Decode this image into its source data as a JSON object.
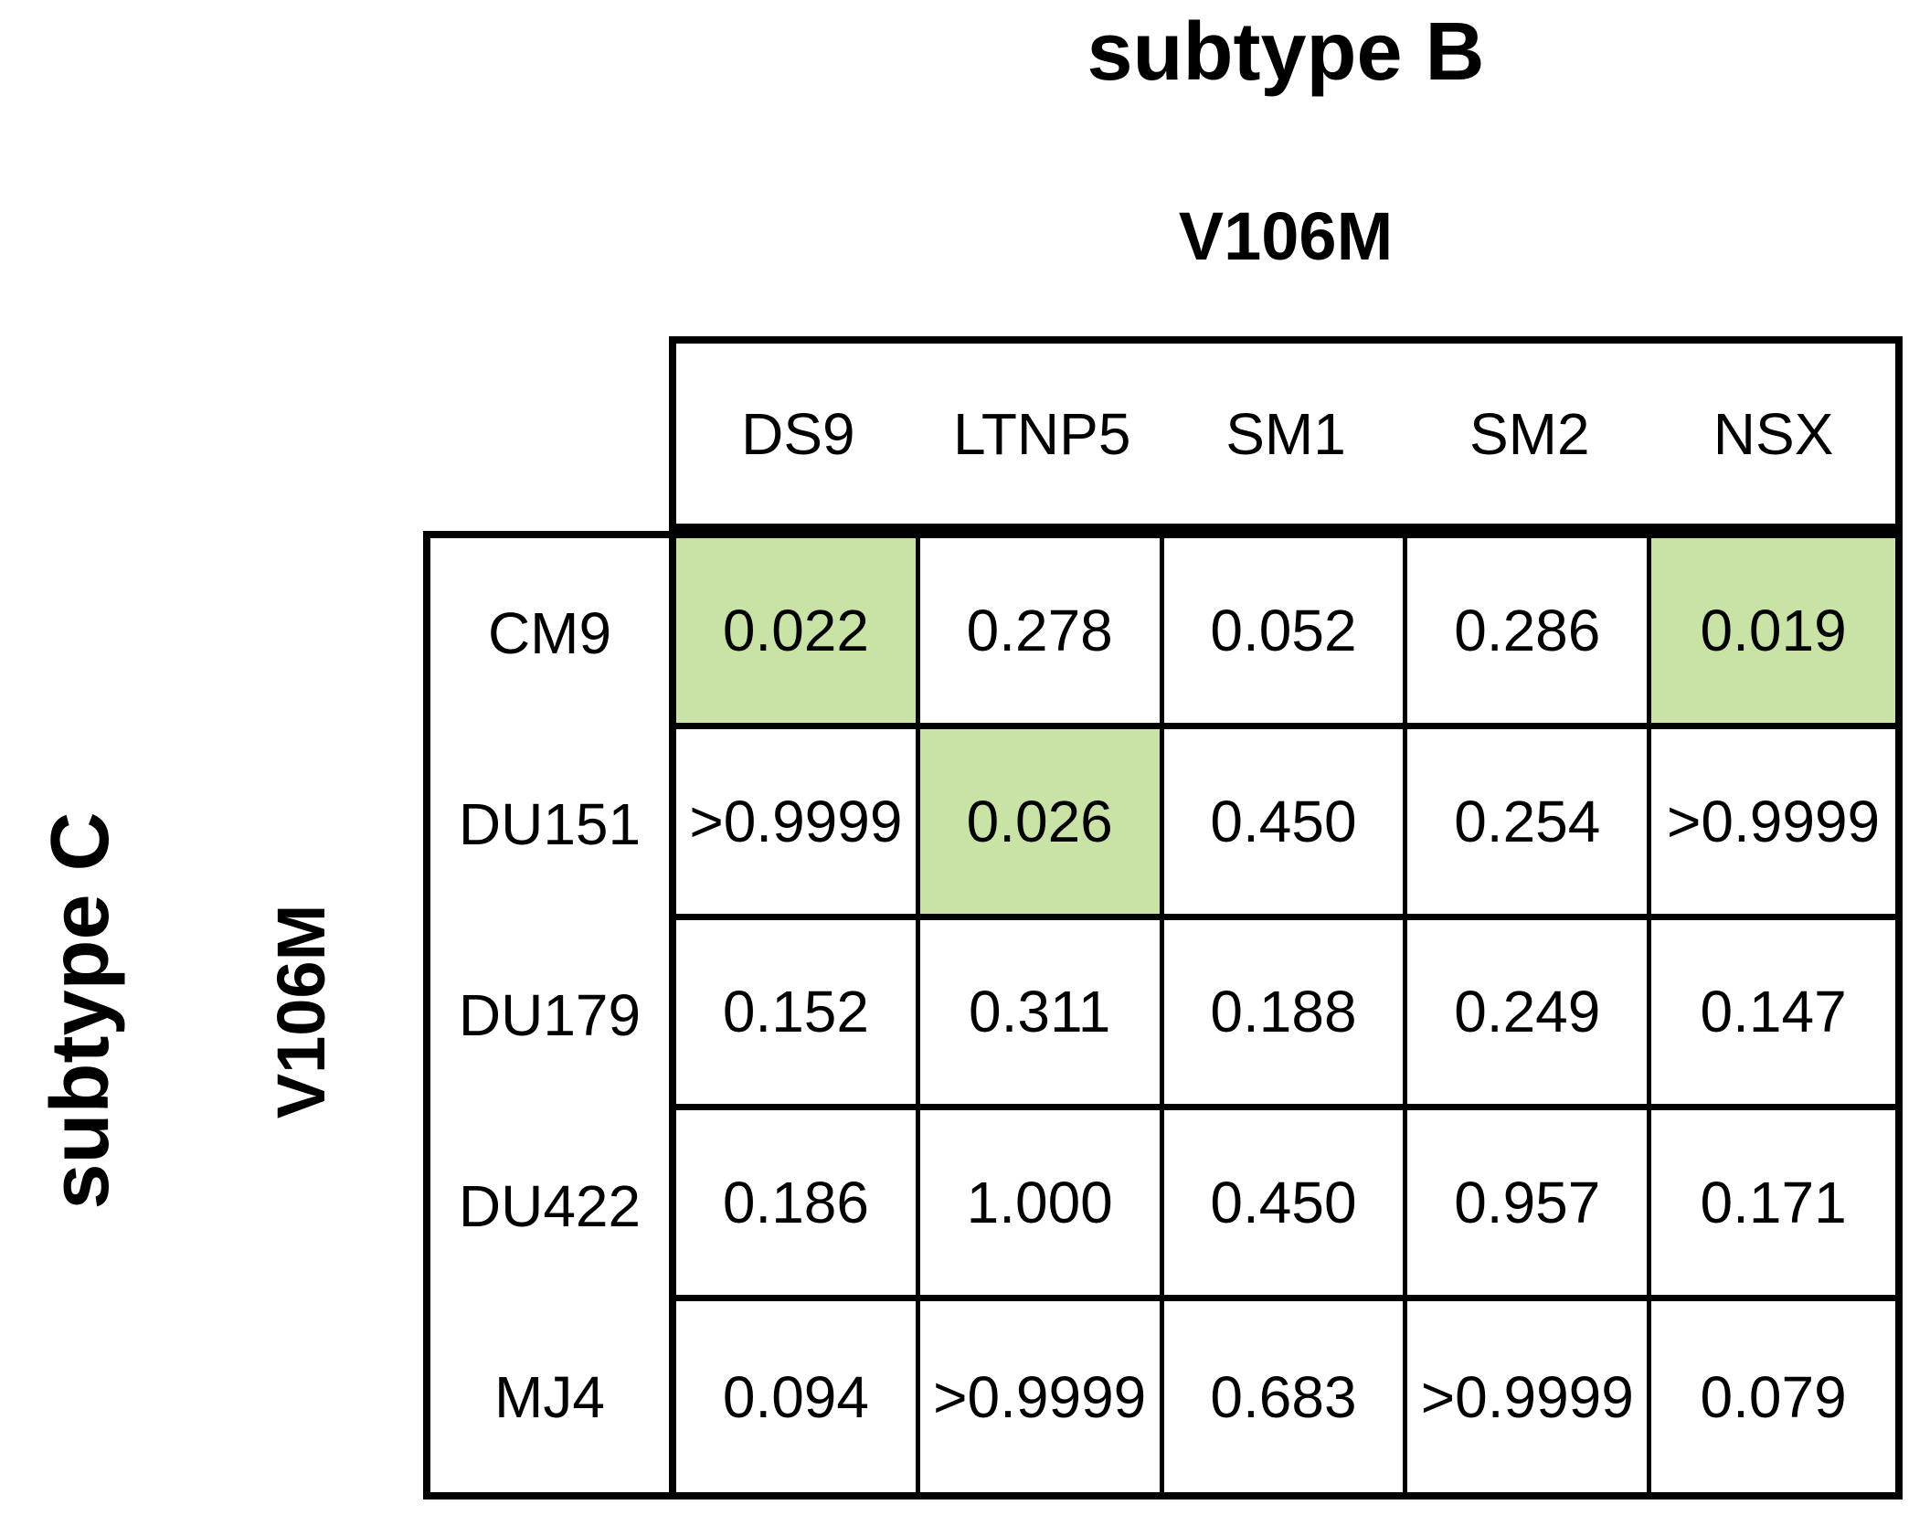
{
  "figure": {
    "title_top": "subtype B",
    "column_group_label": "V106M",
    "left_title": "subtype C",
    "row_group_label": "V106M"
  },
  "table": {
    "columns": [
      "DS9",
      "LTNP5",
      "SM1",
      "SM2",
      "NSX"
    ],
    "rows": [
      {
        "label": "CM9",
        "values": [
          "0.022",
          "0.278",
          "0.052",
          "0.286",
          "0.019"
        ],
        "highlight": [
          0,
          4
        ]
      },
      {
        "label": "DU151",
        "values": [
          ">0.9999",
          "0.026",
          "0.450",
          "0.254",
          ">0.9999"
        ],
        "highlight": [
          1
        ]
      },
      {
        "label": "DU179",
        "values": [
          "0.152",
          "0.311",
          "0.188",
          "0.249",
          "0.147"
        ],
        "highlight": []
      },
      {
        "label": "DU422",
        "values": [
          "0.186",
          "1.000",
          "0.450",
          "0.957",
          "0.171"
        ],
        "highlight": []
      },
      {
        "label": "MJ4",
        "values": [
          "0.094",
          ">0.9999",
          "0.683",
          ">0.9999",
          "0.079"
        ],
        "highlight": []
      }
    ]
  },
  "colors": {
    "highlight_green": "#c9e2a5",
    "border": "#000000",
    "background": "#ffffff",
    "text": "#000000"
  },
  "chart_data": {
    "type": "table",
    "title": "subtype B",
    "column_group": "V106M",
    "row_group": "subtype C / V106M",
    "columns": [
      "DS9",
      "LTNP5",
      "SM1",
      "SM2",
      "NSX"
    ],
    "row_labels": [
      "CM9",
      "DU151",
      "DU179",
      "DU422",
      "MJ4"
    ],
    "values": [
      [
        "0.022",
        "0.278",
        "0.052",
        "0.286",
        "0.019"
      ],
      [
        ">0.9999",
        "0.026",
        "0.450",
        "0.254",
        ">0.9999"
      ],
      [
        "0.152",
        "0.311",
        "0.188",
        "0.249",
        "0.147"
      ],
      [
        "0.186",
        "1.000",
        "0.450",
        "0.957",
        "0.171"
      ],
      [
        "0.094",
        ">0.9999",
        "0.683",
        ">0.9999",
        "0.079"
      ]
    ],
    "highlighted_cells": [
      [
        0,
        0
      ],
      [
        0,
        4
      ],
      [
        1,
        1
      ]
    ],
    "legend_note": "green fill marks highlighted (significant) cells"
  }
}
